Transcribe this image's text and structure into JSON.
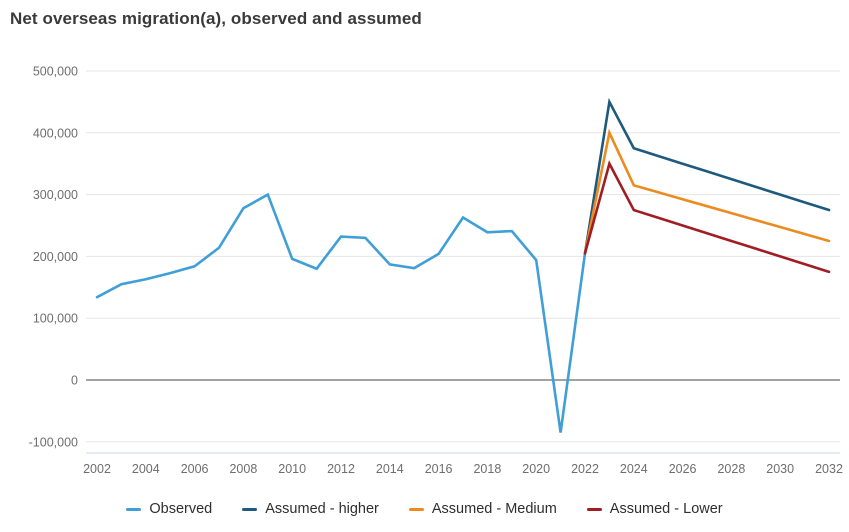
{
  "chart_data": {
    "type": "line",
    "title": "Net overseas migration(a), observed and assumed",
    "xlabel": "",
    "ylabel": "",
    "grid": true,
    "legend_position": "bottom",
    "xlim": [
      2002,
      2032
    ],
    "ylim": [
      -100000,
      500000
    ],
    "x_ticks": [
      2002,
      2004,
      2006,
      2008,
      2010,
      2012,
      2014,
      2016,
      2018,
      2020,
      2022,
      2024,
      2026,
      2028,
      2030,
      2032
    ],
    "y_ticks": [
      {
        "value": -100000,
        "label": "-100,000"
      },
      {
        "value": 0,
        "label": "0"
      },
      {
        "value": 100000,
        "label": "100,000"
      },
      {
        "value": 200000,
        "label": "200,000"
      },
      {
        "value": 300000,
        "label": "300,000"
      },
      {
        "value": 400000,
        "label": "400,000"
      },
      {
        "value": 500000,
        "label": "500,000"
      }
    ],
    "series": [
      {
        "name": "Observed",
        "color": "#3f9fd6",
        "x": [
          2002,
          2003,
          2004,
          2005,
          2006,
          2007,
          2008,
          2009,
          2010,
          2011,
          2012,
          2013,
          2014,
          2015,
          2016,
          2017,
          2018,
          2019,
          2020,
          2021,
          2022
        ],
        "values": [
          134000,
          155000,
          163000,
          173000,
          184000,
          214000,
          278000,
          300000,
          196000,
          180000,
          232000,
          230000,
          187000,
          181000,
          204000,
          263000,
          239000,
          241000,
          194000,
          -85000,
          205000
        ]
      },
      {
        "name": "Assumed - higher",
        "color": "#1e5a7d",
        "x": [
          2022,
          2023,
          2024,
          2025,
          2026,
          2027,
          2028,
          2029,
          2030,
          2031,
          2032
        ],
        "values": [
          205000,
          450000,
          375000,
          362500,
          350000,
          337500,
          325000,
          312500,
          300000,
          287500,
          275000
        ]
      },
      {
        "name": "Assumed - Medium",
        "color": "#ec8b20",
        "x": [
          2022,
          2023,
          2024,
          2025,
          2026,
          2027,
          2028,
          2029,
          2030,
          2031,
          2032
        ],
        "values": [
          205000,
          400000,
          315000,
          303750,
          292500,
          281250,
          270000,
          258750,
          247500,
          236250,
          225000
        ]
      },
      {
        "name": "Assumed - Lower",
        "color": "#a01d23",
        "x": [
          2022,
          2023,
          2024,
          2025,
          2026,
          2027,
          2028,
          2029,
          2030,
          2031,
          2032
        ],
        "values": [
          205000,
          350000,
          275000,
          262500,
          250000,
          237500,
          225000,
          212500,
          200000,
          187500,
          175000
        ]
      }
    ]
  }
}
